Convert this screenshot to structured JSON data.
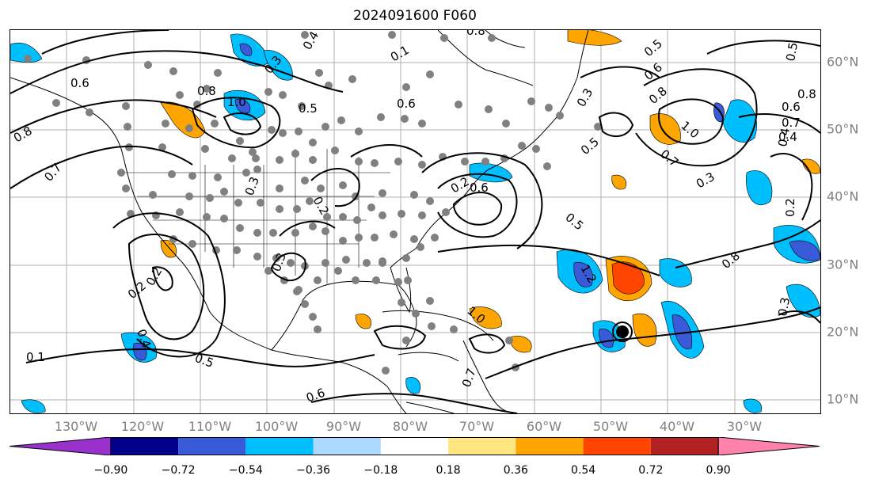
{
  "title": "2024091600 F060",
  "map": {
    "lon_labels": [
      "130°W",
      "120°W",
      "110°W",
      "100°W",
      "90°W",
      "80°W",
      "70°W",
      "60°W",
      "50°W",
      "40°W",
      "30°W"
    ],
    "lat_labels": [
      "60°N",
      "50°N",
      "40°N",
      "30°N",
      "20°N",
      "10°N"
    ],
    "contour_labels": [
      "0.6",
      "0.8",
      "0.7",
      "0.8",
      "1.0",
      "0.3",
      "0.4",
      "0.1",
      "0.5",
      "0.6",
      "0.8",
      "0.5",
      "0.6",
      "0.8",
      "0.3",
      "0.5",
      "1.0",
      "0.7",
      "0.6",
      "0.4",
      "0.3",
      "0.5",
      "0.2",
      "0.6",
      "0.3",
      "0.2",
      "0.3",
      "0.2",
      "0.2",
      "0.4",
      "0.5",
      "0.1",
      "0.6",
      "1.2",
      "0.8",
      "1.0",
      "0.7",
      "0.5",
      "0.8",
      "0.7",
      "0.4",
      "0.2",
      "0.3"
    ],
    "storm_marker": "tropical-cyclone-center",
    "colors": {
      "contour": "#000000",
      "grid": "#b0b0b0",
      "stations": "#808080",
      "coast": "#000000"
    }
  },
  "colorbar": {
    "ticks": [
      "−0.90",
      "−0.72",
      "−0.54",
      "−0.36",
      "−0.18",
      "0.18",
      "0.36",
      "0.54",
      "0.72",
      "0.90"
    ],
    "colors": [
      "#9932cc",
      "#00008b",
      "#3a5bd9",
      "#00bfff",
      "#add8ff",
      "#ffffff",
      "#ffe680",
      "#ffa500",
      "#ff4500",
      "#b22222",
      "#ff82ab"
    ]
  }
}
